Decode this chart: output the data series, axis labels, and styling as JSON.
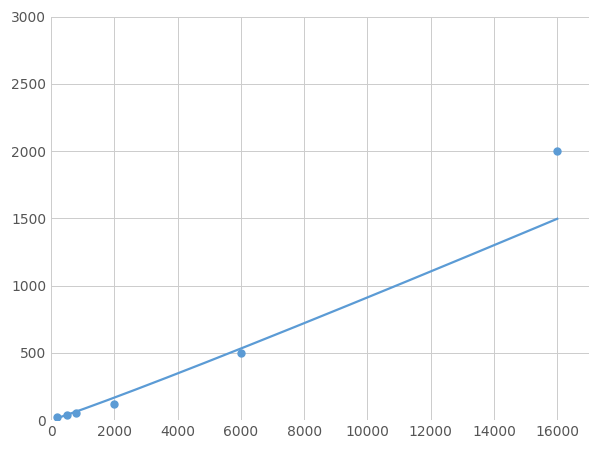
{
  "x": [
    200,
    500,
    800,
    2000,
    6000,
    16000
  ],
  "y": [
    20,
    40,
    50,
    120,
    500,
    2000
  ],
  "line_color": "#5b9bd5",
  "marker_color": "#5b9bd5",
  "marker_size": 5,
  "line_width": 1.6,
  "xlim": [
    0,
    17000
  ],
  "ylim": [
    0,
    3000
  ],
  "xticks": [
    0,
    2000,
    4000,
    6000,
    8000,
    10000,
    12000,
    14000,
    16000
  ],
  "yticks": [
    0,
    500,
    1000,
    1500,
    2000,
    2500,
    3000
  ],
  "grid_color": "#cccccc",
  "background_color": "#ffffff",
  "tick_label_fontsize": 10
}
